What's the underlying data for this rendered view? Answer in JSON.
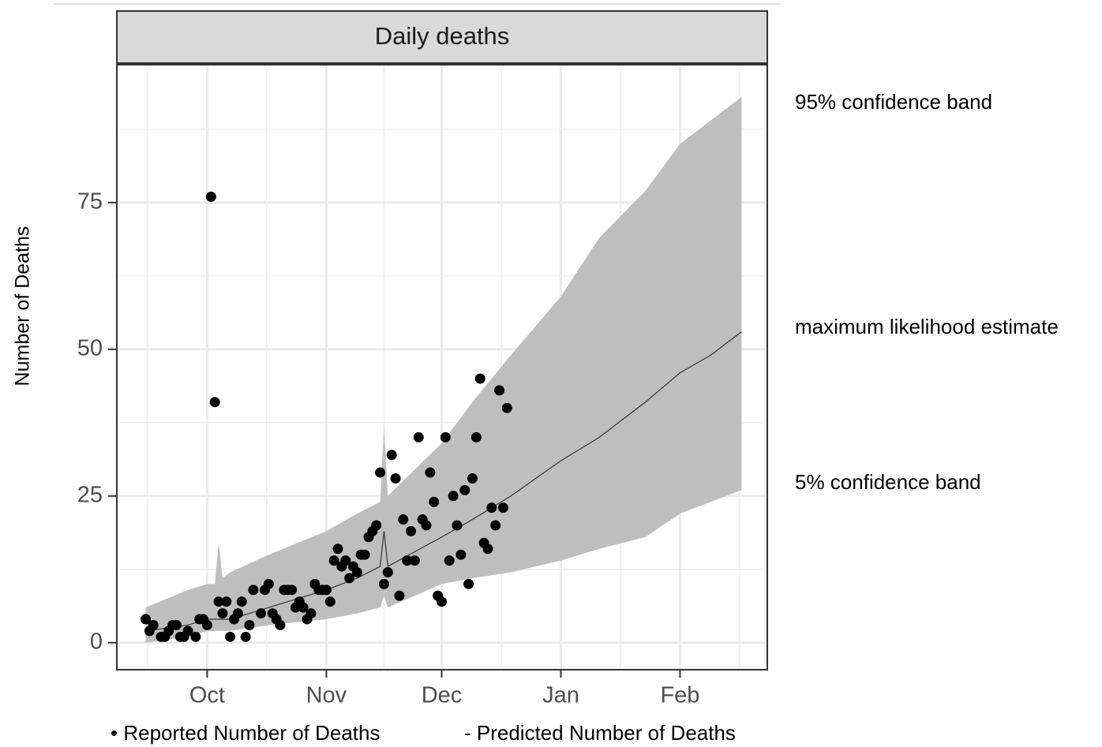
{
  "chart_data": {
    "type": "scatter",
    "title": "Daily deaths",
    "y_label": "Number of Deaths",
    "xlim": [
      -23.5,
      145.7
    ],
    "xticks": [
      {
        "value": 0,
        "label": "Oct"
      },
      {
        "value": 31,
        "label": "Nov"
      },
      {
        "value": 61,
        "label": "Dec"
      },
      {
        "value": 92,
        "label": "Jan"
      },
      {
        "value": 123,
        "label": "Feb"
      }
    ],
    "ylim": [
      -4.6,
      98.5
    ],
    "yticks": [
      0,
      25,
      50,
      75
    ],
    "grid": true,
    "color": "#000000",
    "x": [
      -16,
      -15,
      -14,
      -12,
      -11,
      -10,
      -9,
      -8,
      -7,
      -6,
      -5,
      -3,
      -2,
      -1,
      0,
      1,
      2,
      3,
      4,
      5,
      6,
      7,
      8,
      9,
      10,
      11,
      12,
      14,
      15,
      16,
      17,
      18,
      19,
      20,
      21,
      22,
      23,
      24,
      25,
      26,
      27,
      28,
      29,
      30,
      31,
      32,
      33,
      34,
      35,
      36,
      37,
      38,
      39,
      40,
      41,
      42,
      43,
      44,
      45,
      46,
      47,
      48,
      49,
      50,
      51,
      52,
      53,
      54,
      55,
      56,
      57,
      58,
      59,
      60,
      61,
      62,
      63,
      64,
      65,
      66,
      67,
      68,
      69,
      70,
      71,
      72,
      73,
      74,
      75,
      76,
      77,
      78
    ],
    "values": [
      4,
      2,
      3,
      1,
      1,
      2,
      3,
      3,
      1,
      1,
      2,
      1,
      4,
      4,
      3,
      76,
      41,
      7,
      5,
      7,
      1,
      4,
      5,
      7,
      1,
      3,
      9,
      5,
      9,
      10,
      5,
      4,
      3,
      9,
      9,
      9,
      6,
      7,
      6,
      4,
      5,
      10,
      9,
      9,
      9,
      7,
      14,
      16,
      13,
      14,
      11,
      13,
      12,
      15,
      15,
      18,
      19,
      20,
      29,
      10,
      12,
      32,
      28,
      8,
      21,
      14,
      19,
      14,
      35,
      21,
      20,
      29,
      24,
      8,
      7,
      35,
      14,
      25,
      20,
      15,
      26,
      10,
      28,
      35,
      45,
      17,
      16,
      23,
      20,
      43,
      23,
      40
    ],
    "band": {
      "x": [
        -16,
        -5,
        0,
        2,
        3,
        4,
        6,
        16,
        31,
        39,
        45,
        46,
        47,
        61,
        69,
        79,
        92,
        102,
        114,
        123,
        131,
        139
      ],
      "upper": [
        6,
        9,
        10,
        10,
        17,
        11,
        12,
        15,
        19,
        22,
        24,
        37,
        25,
        34,
        41,
        49,
        59,
        69,
        77,
        85,
        89,
        93
      ],
      "lower": [
        0,
        1,
        2,
        2,
        2,
        2,
        2,
        3,
        4,
        5,
        6,
        8,
        6,
        10,
        11,
        12,
        14,
        16,
        18,
        22,
        24,
        26
      ],
      "predicted": [
        2,
        3,
        4,
        4,
        4,
        4,
        4,
        6,
        9,
        11,
        13,
        19,
        13,
        18,
        21,
        25,
        31,
        35,
        41,
        46,
        49,
        53
      ],
      "band_color": "#bebebe",
      "line_color": "#333333"
    },
    "annotations": [
      "95% confidence band",
      "maximum likelihood estimate",
      "5% confidence band"
    ],
    "legend": [
      "• Reported Number of Deaths",
      "- Predicted Number of Deaths"
    ]
  }
}
